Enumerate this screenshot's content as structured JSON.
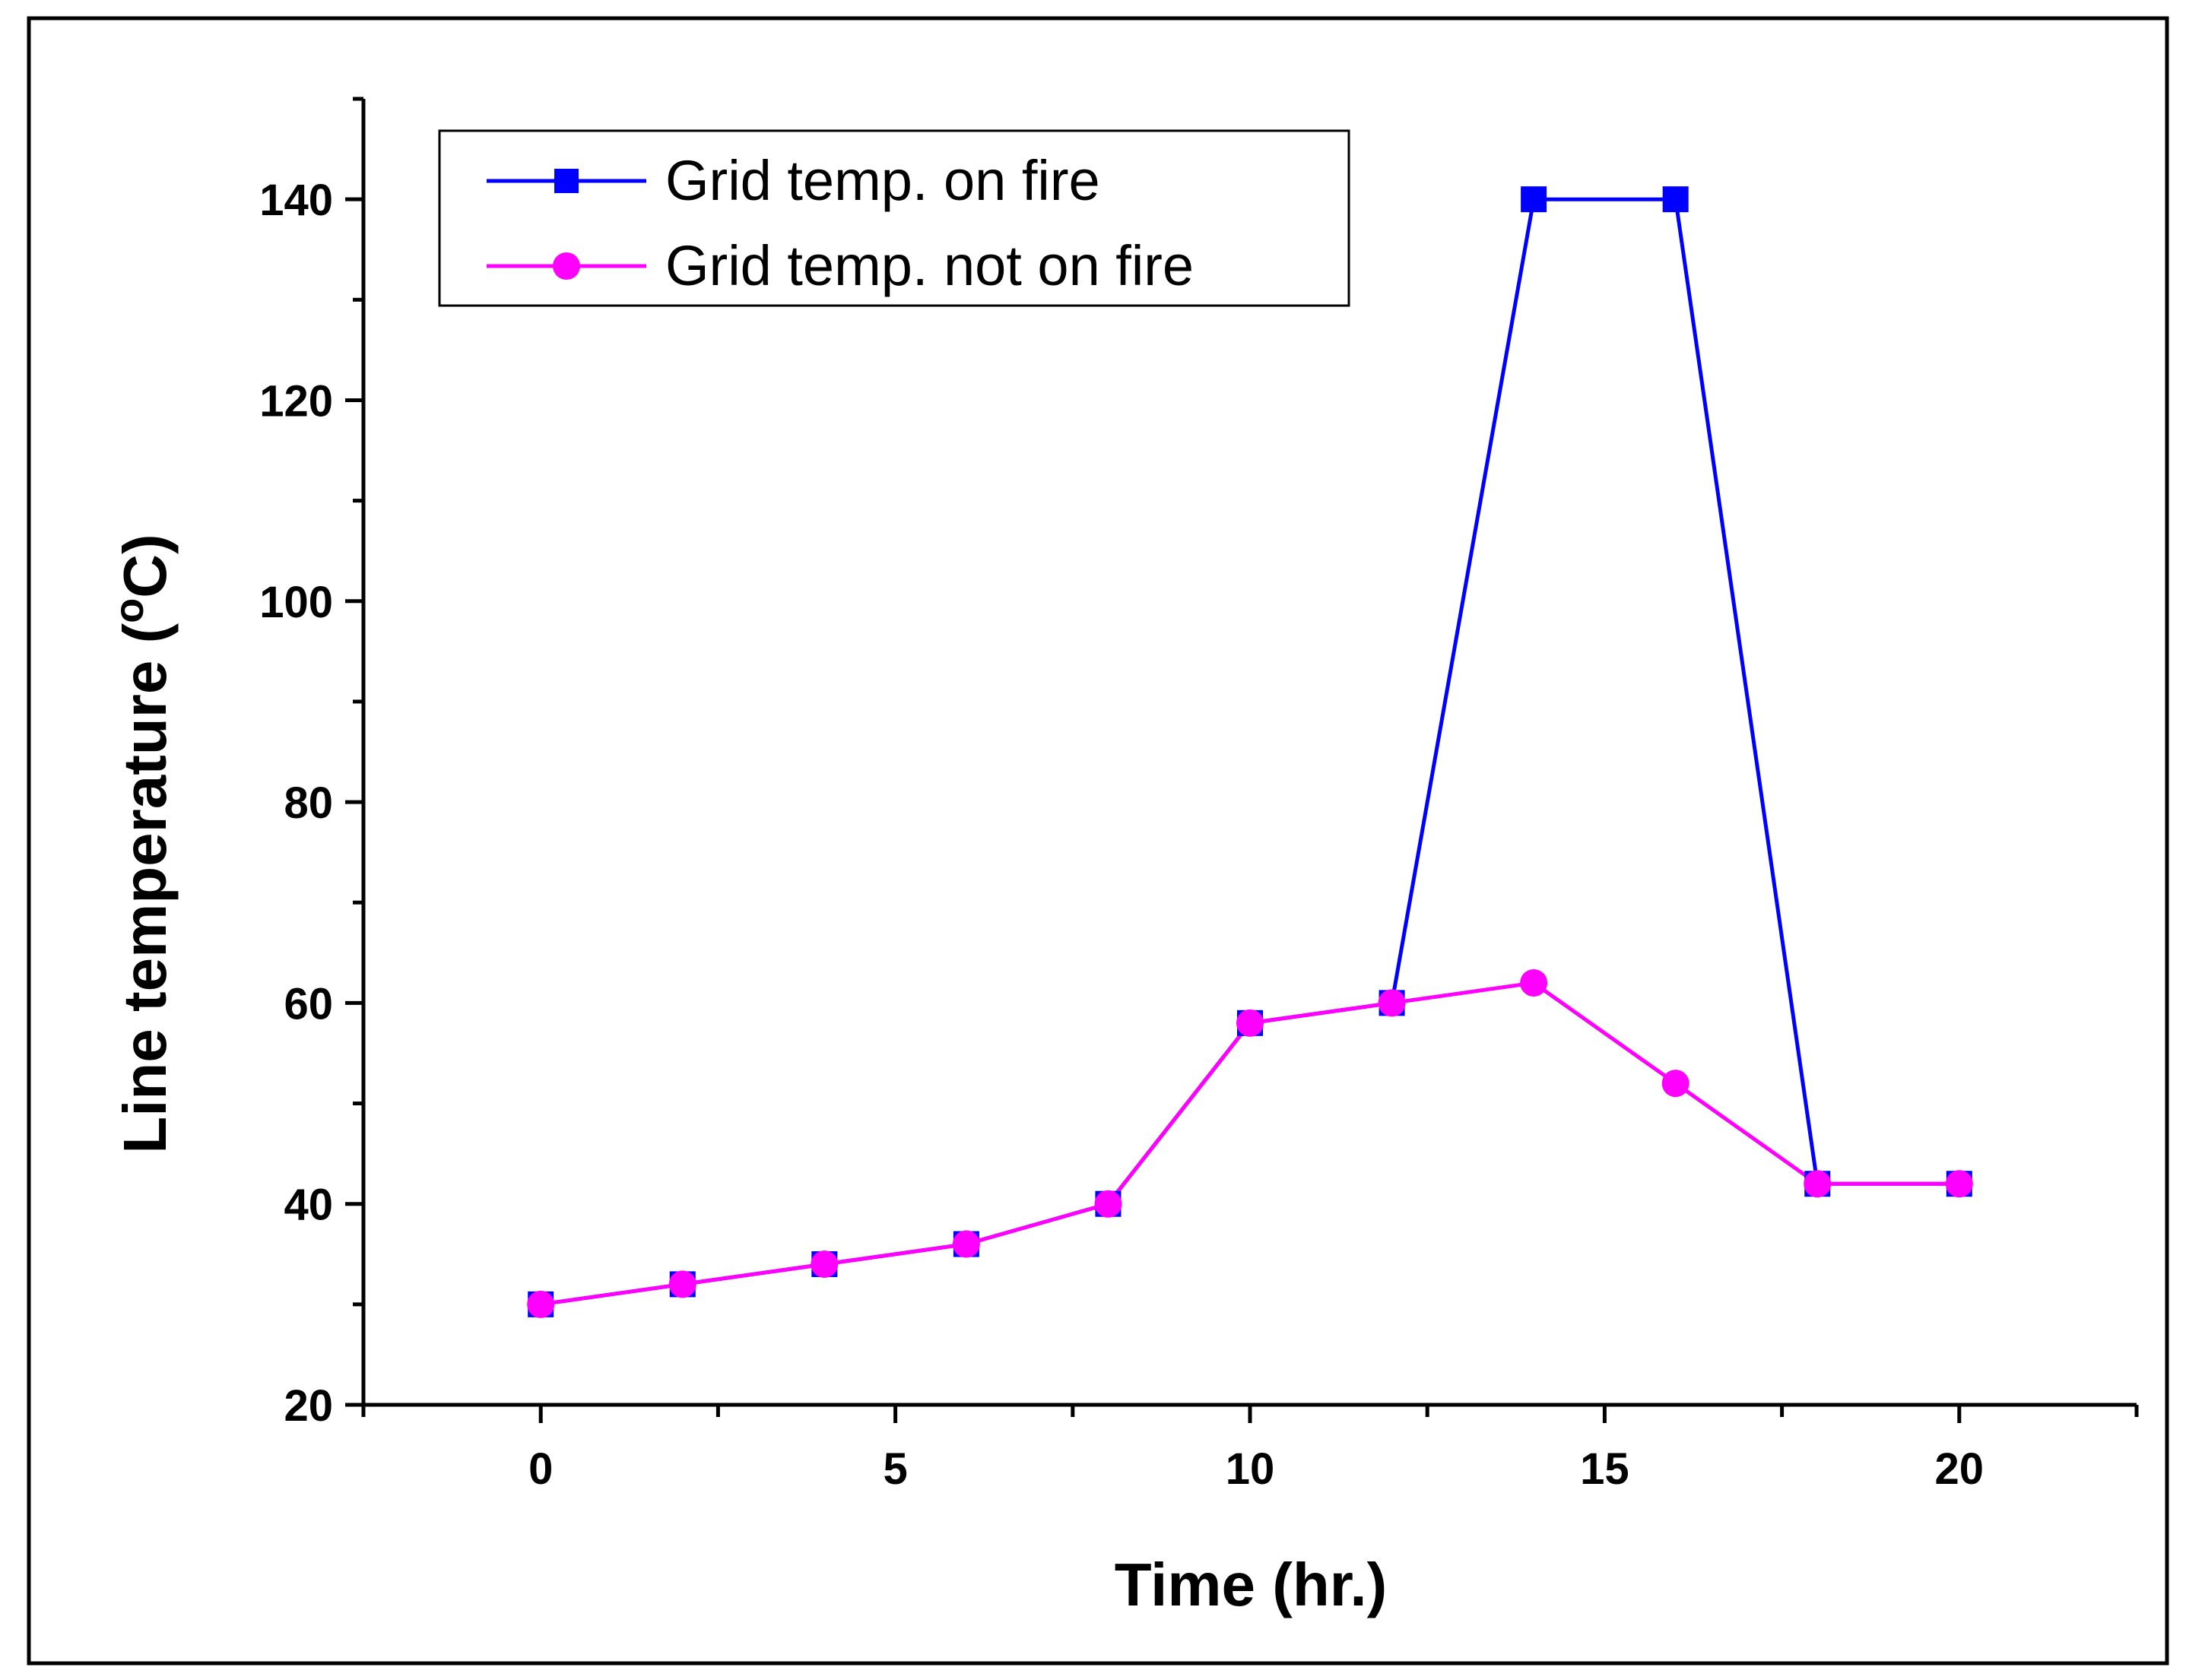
{
  "chart_data": {
    "type": "line",
    "title": "",
    "xlabel": "Time (hr.)",
    "ylabel_main": "Line temperature (",
    "ylabel_sup": "o",
    "ylabel_tail": "C)",
    "xlim": [
      -2.5,
      22.5
    ],
    "ylim": [
      20,
      150
    ],
    "x_ticks": [
      0,
      5,
      10,
      15,
      20
    ],
    "x_tick_labels": [
      "0",
      "5",
      "10",
      "15",
      "20"
    ],
    "y_ticks": [
      20,
      40,
      60,
      80,
      100,
      120,
      140
    ],
    "y_tick_labels": [
      "20",
      "40",
      "60",
      "80",
      "100",
      "120",
      "140"
    ],
    "x": [
      0,
      2,
      4,
      6,
      8,
      10,
      12,
      14,
      16,
      18,
      20
    ],
    "series": [
      {
        "name": "Grid temp. on fire",
        "color": "#0000ff",
        "marker": "square",
        "values": [
          30,
          32,
          34,
          36,
          40,
          58,
          60,
          140,
          140,
          42,
          42
        ]
      },
      {
        "name": "Grid temp. not on fire",
        "color": "#ff00ff",
        "marker": "circle",
        "values": [
          30,
          32,
          34,
          36,
          40,
          58,
          60,
          62,
          52,
          42,
          42
        ]
      }
    ],
    "legend_position": "top-left",
    "grid": false
  }
}
